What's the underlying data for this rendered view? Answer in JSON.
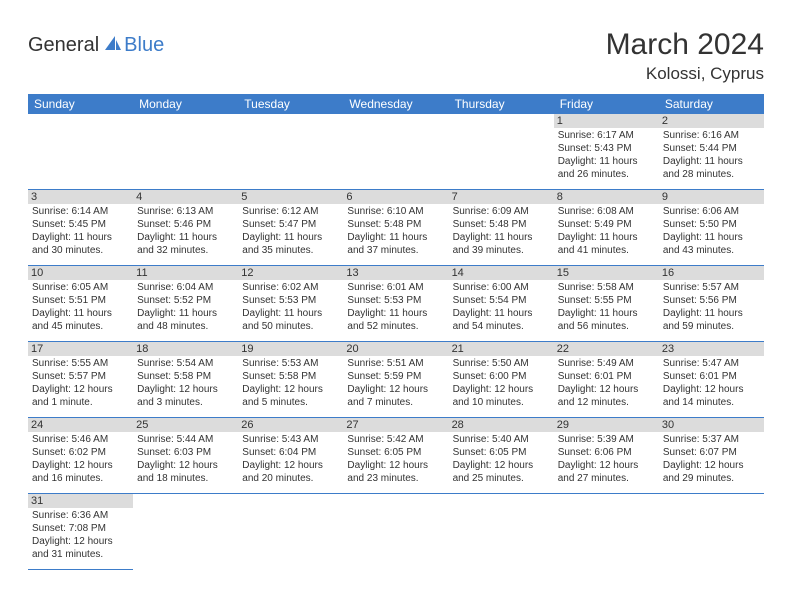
{
  "brand": {
    "part1": "General",
    "part2": "Blue"
  },
  "title": "March 2024",
  "location": "Kolossi, Cyprus",
  "colors": {
    "header_bg": "#3d7cc9",
    "header_text": "#ffffff",
    "daynum_bg": "#dcdcdc",
    "cell_border": "#3d7cc9",
    "text": "#333333",
    "brand_blue": "#3d7cc9",
    "background": "#ffffff"
  },
  "day_headers": [
    "Sunday",
    "Monday",
    "Tuesday",
    "Wednesday",
    "Thursday",
    "Friday",
    "Saturday"
  ],
  "weeks": [
    [
      null,
      null,
      null,
      null,
      null,
      {
        "n": "1",
        "sr": "Sunrise: 6:17 AM",
        "ss": "Sunset: 5:43 PM",
        "dl": "Daylight: 11 hours and 26 minutes."
      },
      {
        "n": "2",
        "sr": "Sunrise: 6:16 AM",
        "ss": "Sunset: 5:44 PM",
        "dl": "Daylight: 11 hours and 28 minutes."
      }
    ],
    [
      {
        "n": "3",
        "sr": "Sunrise: 6:14 AM",
        "ss": "Sunset: 5:45 PM",
        "dl": "Daylight: 11 hours and 30 minutes."
      },
      {
        "n": "4",
        "sr": "Sunrise: 6:13 AM",
        "ss": "Sunset: 5:46 PM",
        "dl": "Daylight: 11 hours and 32 minutes."
      },
      {
        "n": "5",
        "sr": "Sunrise: 6:12 AM",
        "ss": "Sunset: 5:47 PM",
        "dl": "Daylight: 11 hours and 35 minutes."
      },
      {
        "n": "6",
        "sr": "Sunrise: 6:10 AM",
        "ss": "Sunset: 5:48 PM",
        "dl": "Daylight: 11 hours and 37 minutes."
      },
      {
        "n": "7",
        "sr": "Sunrise: 6:09 AM",
        "ss": "Sunset: 5:48 PM",
        "dl": "Daylight: 11 hours and 39 minutes."
      },
      {
        "n": "8",
        "sr": "Sunrise: 6:08 AM",
        "ss": "Sunset: 5:49 PM",
        "dl": "Daylight: 11 hours and 41 minutes."
      },
      {
        "n": "9",
        "sr": "Sunrise: 6:06 AM",
        "ss": "Sunset: 5:50 PM",
        "dl": "Daylight: 11 hours and 43 minutes."
      }
    ],
    [
      {
        "n": "10",
        "sr": "Sunrise: 6:05 AM",
        "ss": "Sunset: 5:51 PM",
        "dl": "Daylight: 11 hours and 45 minutes."
      },
      {
        "n": "11",
        "sr": "Sunrise: 6:04 AM",
        "ss": "Sunset: 5:52 PM",
        "dl": "Daylight: 11 hours and 48 minutes."
      },
      {
        "n": "12",
        "sr": "Sunrise: 6:02 AM",
        "ss": "Sunset: 5:53 PM",
        "dl": "Daylight: 11 hours and 50 minutes."
      },
      {
        "n": "13",
        "sr": "Sunrise: 6:01 AM",
        "ss": "Sunset: 5:53 PM",
        "dl": "Daylight: 11 hours and 52 minutes."
      },
      {
        "n": "14",
        "sr": "Sunrise: 6:00 AM",
        "ss": "Sunset: 5:54 PM",
        "dl": "Daylight: 11 hours and 54 minutes."
      },
      {
        "n": "15",
        "sr": "Sunrise: 5:58 AM",
        "ss": "Sunset: 5:55 PM",
        "dl": "Daylight: 11 hours and 56 minutes."
      },
      {
        "n": "16",
        "sr": "Sunrise: 5:57 AM",
        "ss": "Sunset: 5:56 PM",
        "dl": "Daylight: 11 hours and 59 minutes."
      }
    ],
    [
      {
        "n": "17",
        "sr": "Sunrise: 5:55 AM",
        "ss": "Sunset: 5:57 PM",
        "dl": "Daylight: 12 hours and 1 minute."
      },
      {
        "n": "18",
        "sr": "Sunrise: 5:54 AM",
        "ss": "Sunset: 5:58 PM",
        "dl": "Daylight: 12 hours and 3 minutes."
      },
      {
        "n": "19",
        "sr": "Sunrise: 5:53 AM",
        "ss": "Sunset: 5:58 PM",
        "dl": "Daylight: 12 hours and 5 minutes."
      },
      {
        "n": "20",
        "sr": "Sunrise: 5:51 AM",
        "ss": "Sunset: 5:59 PM",
        "dl": "Daylight: 12 hours and 7 minutes."
      },
      {
        "n": "21",
        "sr": "Sunrise: 5:50 AM",
        "ss": "Sunset: 6:00 PM",
        "dl": "Daylight: 12 hours and 10 minutes."
      },
      {
        "n": "22",
        "sr": "Sunrise: 5:49 AM",
        "ss": "Sunset: 6:01 PM",
        "dl": "Daylight: 12 hours and 12 minutes."
      },
      {
        "n": "23",
        "sr": "Sunrise: 5:47 AM",
        "ss": "Sunset: 6:01 PM",
        "dl": "Daylight: 12 hours and 14 minutes."
      }
    ],
    [
      {
        "n": "24",
        "sr": "Sunrise: 5:46 AM",
        "ss": "Sunset: 6:02 PM",
        "dl": "Daylight: 12 hours and 16 minutes."
      },
      {
        "n": "25",
        "sr": "Sunrise: 5:44 AM",
        "ss": "Sunset: 6:03 PM",
        "dl": "Daylight: 12 hours and 18 minutes."
      },
      {
        "n": "26",
        "sr": "Sunrise: 5:43 AM",
        "ss": "Sunset: 6:04 PM",
        "dl": "Daylight: 12 hours and 20 minutes."
      },
      {
        "n": "27",
        "sr": "Sunrise: 5:42 AM",
        "ss": "Sunset: 6:05 PM",
        "dl": "Daylight: 12 hours and 23 minutes."
      },
      {
        "n": "28",
        "sr": "Sunrise: 5:40 AM",
        "ss": "Sunset: 6:05 PM",
        "dl": "Daylight: 12 hours and 25 minutes."
      },
      {
        "n": "29",
        "sr": "Sunrise: 5:39 AM",
        "ss": "Sunset: 6:06 PM",
        "dl": "Daylight: 12 hours and 27 minutes."
      },
      {
        "n": "30",
        "sr": "Sunrise: 5:37 AM",
        "ss": "Sunset: 6:07 PM",
        "dl": "Daylight: 12 hours and 29 minutes."
      }
    ],
    [
      {
        "n": "31",
        "sr": "Sunrise: 6:36 AM",
        "ss": "Sunset: 7:08 PM",
        "dl": "Daylight: 12 hours and 31 minutes."
      },
      null,
      null,
      null,
      null,
      null,
      null
    ]
  ]
}
